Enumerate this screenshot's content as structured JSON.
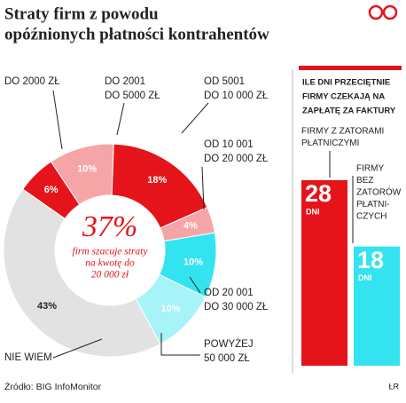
{
  "chart_data": [
    {
      "type": "pie",
      "title": [
        "Straty firm z powodu",
        "opóźnionych płatności kontrahentów"
      ],
      "categories": [
        [
          "DO 2000 ZŁ"
        ],
        [
          "DO 2001",
          "DO 5000 ZŁ"
        ],
        [
          "OD 5001",
          "DO 10 000 ZŁ"
        ],
        [
          "OD 10 001",
          "DO 20 000 ZŁ"
        ],
        [
          "OD 20 001",
          "DO 30 000 ZŁ"
        ],
        [
          "POWYŻEJ",
          "50 000 ZŁ"
        ],
        [
          "NIE WIEM"
        ]
      ],
      "values": [
        6,
        10,
        18,
        4,
        10,
        10,
        43
      ],
      "value_labels": [
        "6%",
        "10%",
        "18%",
        "4%",
        "10%",
        "10%",
        "43%"
      ],
      "colors": [
        "#e5141b",
        "#f6a5a7",
        "#e5141b",
        "#f6a5a7",
        "#33e4f0",
        "#a6f3f8",
        "#e2e2e2"
      ],
      "center_annotation": {
        "headline": "37%",
        "text": [
          "firm szacuje straty",
          "na kwotę do",
          "20 000 zł"
        ]
      }
    },
    {
      "type": "bar",
      "title": [
        "ILE DNI PRZECIĘTNIE",
        "FIRMY CZEKAJĄ NA",
        "ZAPŁATĘ ZA FAKTURY"
      ],
      "categories": [
        [
          "FIRMY Z ZATORAMI",
          "PŁATNICZYMI"
        ],
        [
          "FIRMY",
          "BEZ",
          "ZATORÓW",
          "PŁATNI-",
          "CZYCH"
        ]
      ],
      "values": [
        28,
        18
      ],
      "value_unit": "DNI",
      "colors": [
        "#e5141b",
        "#33e4f0"
      ]
    }
  ],
  "source": "Źródło: BIG InfoMonitor",
  "credit": "ŁR"
}
